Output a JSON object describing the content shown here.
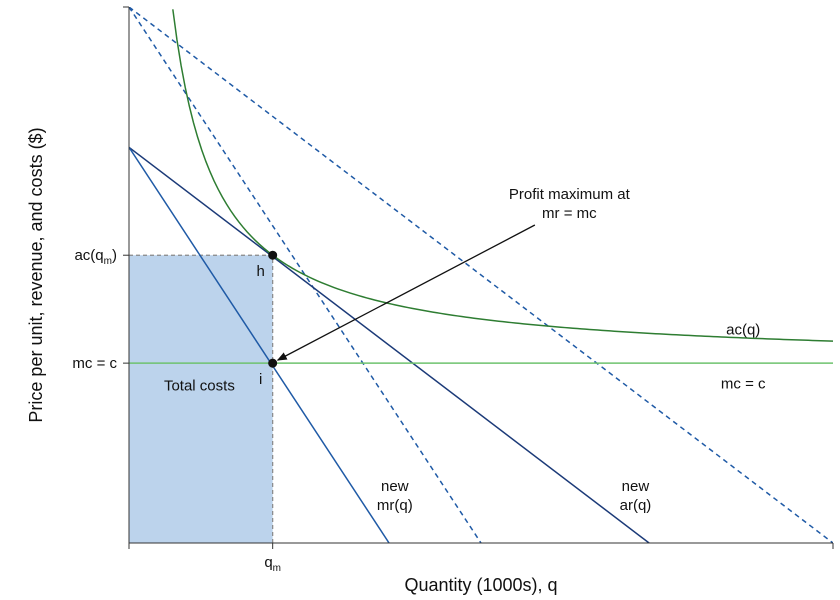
{
  "chart_data": {
    "type": "line",
    "title": "",
    "xlabel": "Quantity (1000s), q",
    "ylabel": "Price per unit, revenue, and costs ($)",
    "x_ticks": [
      {
        "x": 20,
        "label_main": "q",
        "label_sub": "m"
      }
    ],
    "y_ticks": [
      {
        "y": 40,
        "label_main": "ac(q",
        "label_sub": "m",
        "label_tail": ")"
      },
      {
        "y": 25,
        "label_main": "mc = c",
        "label_sub": "",
        "label_tail": ""
      }
    ],
    "xlim": [
      0,
      98
    ],
    "ylim": [
      0,
      74.5
    ],
    "grid": false,
    "legend": "none",
    "series": [
      {
        "key": "ar_old",
        "style": "dashed",
        "color": "#1f5aa6",
        "x": [
          0,
          98
        ],
        "y": [
          74.5,
          0
        ]
      },
      {
        "key": "mr_old",
        "style": "dashed",
        "color": "#1f5aa6",
        "x": [
          0,
          49
        ],
        "y": [
          74.5,
          0
        ]
      },
      {
        "key": "ar_new",
        "name": "new ar(q)",
        "style": "solid",
        "color": "#1b3a78",
        "x": [
          0,
          72.4
        ],
        "y": [
          55,
          0
        ]
      },
      {
        "key": "mr_new",
        "name": "new mr(q)",
        "style": "solid",
        "color": "#1f5aa6",
        "x": [
          0,
          36.2
        ],
        "y": [
          55,
          0
        ]
      },
      {
        "key": "mc",
        "name": "mc = c",
        "style": "solid",
        "color": "#6ec26e",
        "x": [
          0,
          98
        ],
        "y": [
          25,
          25
        ]
      },
      {
        "key": "ac",
        "name": "ac(q)",
        "style": "solid",
        "color": "#2e7d32",
        "fixed_cost": 300,
        "marginal_cost": 25,
        "x_from": 6.1,
        "x_to": 98
      }
    ],
    "shaded_region": {
      "label": "Total costs",
      "x": [
        0,
        20
      ],
      "y": [
        0,
        40
      ],
      "color": "#bcd3ec"
    },
    "guides": [
      {
        "from": [
          0,
          40
        ],
        "to": [
          20,
          40
        ]
      },
      {
        "from": [
          20,
          0
        ],
        "to": [
          20,
          40
        ]
      }
    ],
    "points": [
      {
        "key": "h",
        "label": "h",
        "x": 20,
        "y": 40
      },
      {
        "key": "i",
        "label": "i",
        "x": 20,
        "y": 25
      }
    ],
    "curve_labels": [
      {
        "key": "ac",
        "lines": [
          "ac(q)"
        ],
        "x": 85.5,
        "y": 29
      },
      {
        "key": "mc",
        "lines": [
          "mc = c"
        ],
        "x": 85.5,
        "y": 21.5
      },
      {
        "key": "mr_new",
        "lines": [
          "new",
          "mr(q)"
        ],
        "x": 37,
        "y": 7.2
      },
      {
        "key": "ar_new",
        "lines": [
          "new",
          "ar(q)"
        ],
        "x": 70.5,
        "y": 7.2
      }
    ],
    "annotations": [
      {
        "key": "profit-max",
        "lines": [
          "Profit maximum at",
          "mr = mc"
        ],
        "text_x": 61.3,
        "text_y": 47.8,
        "from": [
          56.5,
          44.2
        ],
        "to": [
          20,
          25
        ]
      },
      {
        "key": "total-costs",
        "lines": [
          "Total costs"
        ],
        "text_x": 9.8,
        "text_y": 21.2
      }
    ]
  }
}
